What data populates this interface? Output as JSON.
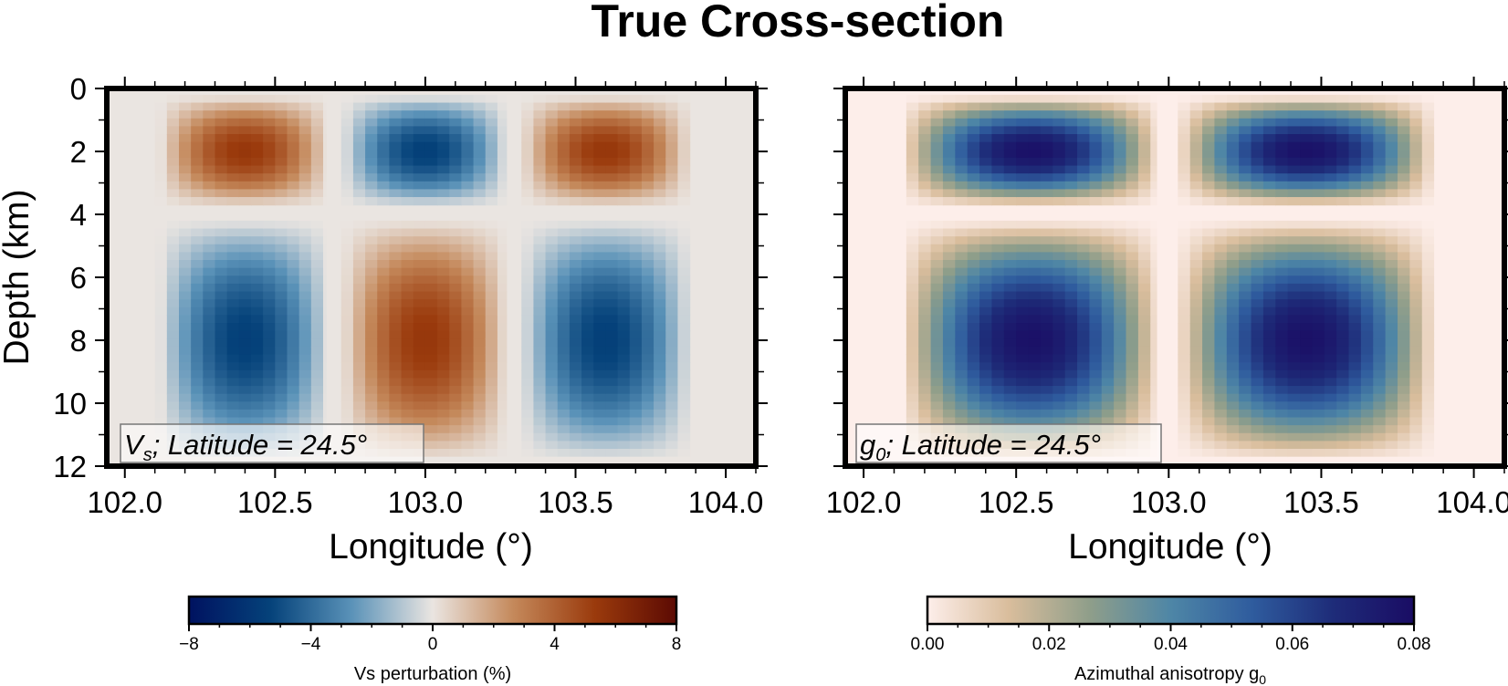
{
  "figure": {
    "title": "True Cross-section"
  },
  "chart_data": [
    {
      "type": "heatmap",
      "label_var": "V",
      "label_sub": "s",
      "label_rest": "; Latitude = 24.5°",
      "xlabel": "Longitude (°)",
      "ylabel": "Depth (km)",
      "xlim": [
        101.94,
        104.1
      ],
      "ylim": [
        12,
        0
      ],
      "xticks": [
        "102.0",
        "102.5",
        "103.0",
        "103.5",
        "104.0"
      ],
      "yticks": [
        "0",
        "2",
        "4",
        "6",
        "8",
        "10",
        "12"
      ],
      "grid": false,
      "colorbar": {
        "label": "Vs perturbation (%)",
        "range": [
          -8,
          8
        ],
        "ticks": [
          "−8",
          "−4",
          "0",
          "4",
          "8"
        ],
        "colormap": "vik",
        "colors": [
          "#001260",
          "#05427a",
          "#5a92b8",
          "#eae5e1",
          "#c4885a",
          "#9a3a0c",
          "#5c0a03"
        ]
      },
      "background_color": "#eae5e1",
      "anomalies": [
        {
          "lon_center": 102.4,
          "lon_range": [
            102.1,
            102.67
          ],
          "depth_center": 2,
          "depth_range": [
            0.2,
            3.7
          ],
          "value": 5.5
        },
        {
          "lon_center": 103.0,
          "lon_range": [
            102.72,
            103.27
          ],
          "depth_center": 2,
          "depth_range": [
            0.2,
            3.7
          ],
          "value": -5.5
        },
        {
          "lon_center": 103.6,
          "lon_range": [
            103.32,
            103.88
          ],
          "depth_center": 2,
          "depth_range": [
            0.2,
            3.7
          ],
          "value": 5.5
        },
        {
          "lon_center": 102.4,
          "lon_range": [
            102.1,
            102.67
          ],
          "depth_center": 8,
          "depth_range": [
            4.2,
            11.8
          ],
          "value": -5.5
        },
        {
          "lon_center": 103.0,
          "lon_range": [
            102.72,
            103.27
          ],
          "depth_center": 8,
          "depth_range": [
            4.2,
            11.8
          ],
          "value": 5.5
        },
        {
          "lon_center": 103.6,
          "lon_range": [
            103.32,
            103.88
          ],
          "depth_center": 8,
          "depth_range": [
            4.2,
            11.8
          ],
          "value": -5.5
        }
      ]
    },
    {
      "type": "heatmap",
      "label_var": "g",
      "label_sub": "0",
      "label_rest": "; Latitude = 24.5°",
      "xlabel": "Longitude (°)",
      "ylabel": "",
      "xlim": [
        101.94,
        104.1
      ],
      "ylim": [
        12,
        0
      ],
      "xticks": [
        "102.0",
        "102.5",
        "103.0",
        "103.5",
        "104.0"
      ],
      "yticks": [],
      "grid": false,
      "colorbar": {
        "label": "Azimuthal anisotropy g",
        "label_sub": "0",
        "range": [
          0,
          0.08
        ],
        "ticks": [
          "0.00",
          "0.02",
          "0.04",
          "0.06",
          "0.08"
        ],
        "colormap": "lapaz-reversed",
        "colors": [
          "#fdeeea",
          "#d9bd9c",
          "#8f9e8a",
          "#4e86a6",
          "#2f5c9e",
          "#1e2c79",
          "#1a0c64"
        ]
      },
      "background_color": "#fdeeea",
      "anomalies": [
        {
          "lon_center": 102.55,
          "lon_range": [
            102.1,
            102.96
          ],
          "depth_center": 2,
          "depth_range": [
            0.2,
            3.7
          ],
          "value": 0.078
        },
        {
          "lon_center": 103.45,
          "lon_range": [
            103.03,
            103.88
          ],
          "depth_center": 2,
          "depth_range": [
            0.2,
            3.7
          ],
          "value": 0.078
        },
        {
          "lon_center": 102.55,
          "lon_range": [
            102.1,
            102.96
          ],
          "depth_center": 8,
          "depth_range": [
            4.2,
            11.8
          ],
          "value": 0.078
        },
        {
          "lon_center": 103.45,
          "lon_range": [
            103.03,
            103.88
          ],
          "depth_center": 8,
          "depth_range": [
            4.2,
            11.8
          ],
          "value": 0.078
        }
      ]
    }
  ]
}
